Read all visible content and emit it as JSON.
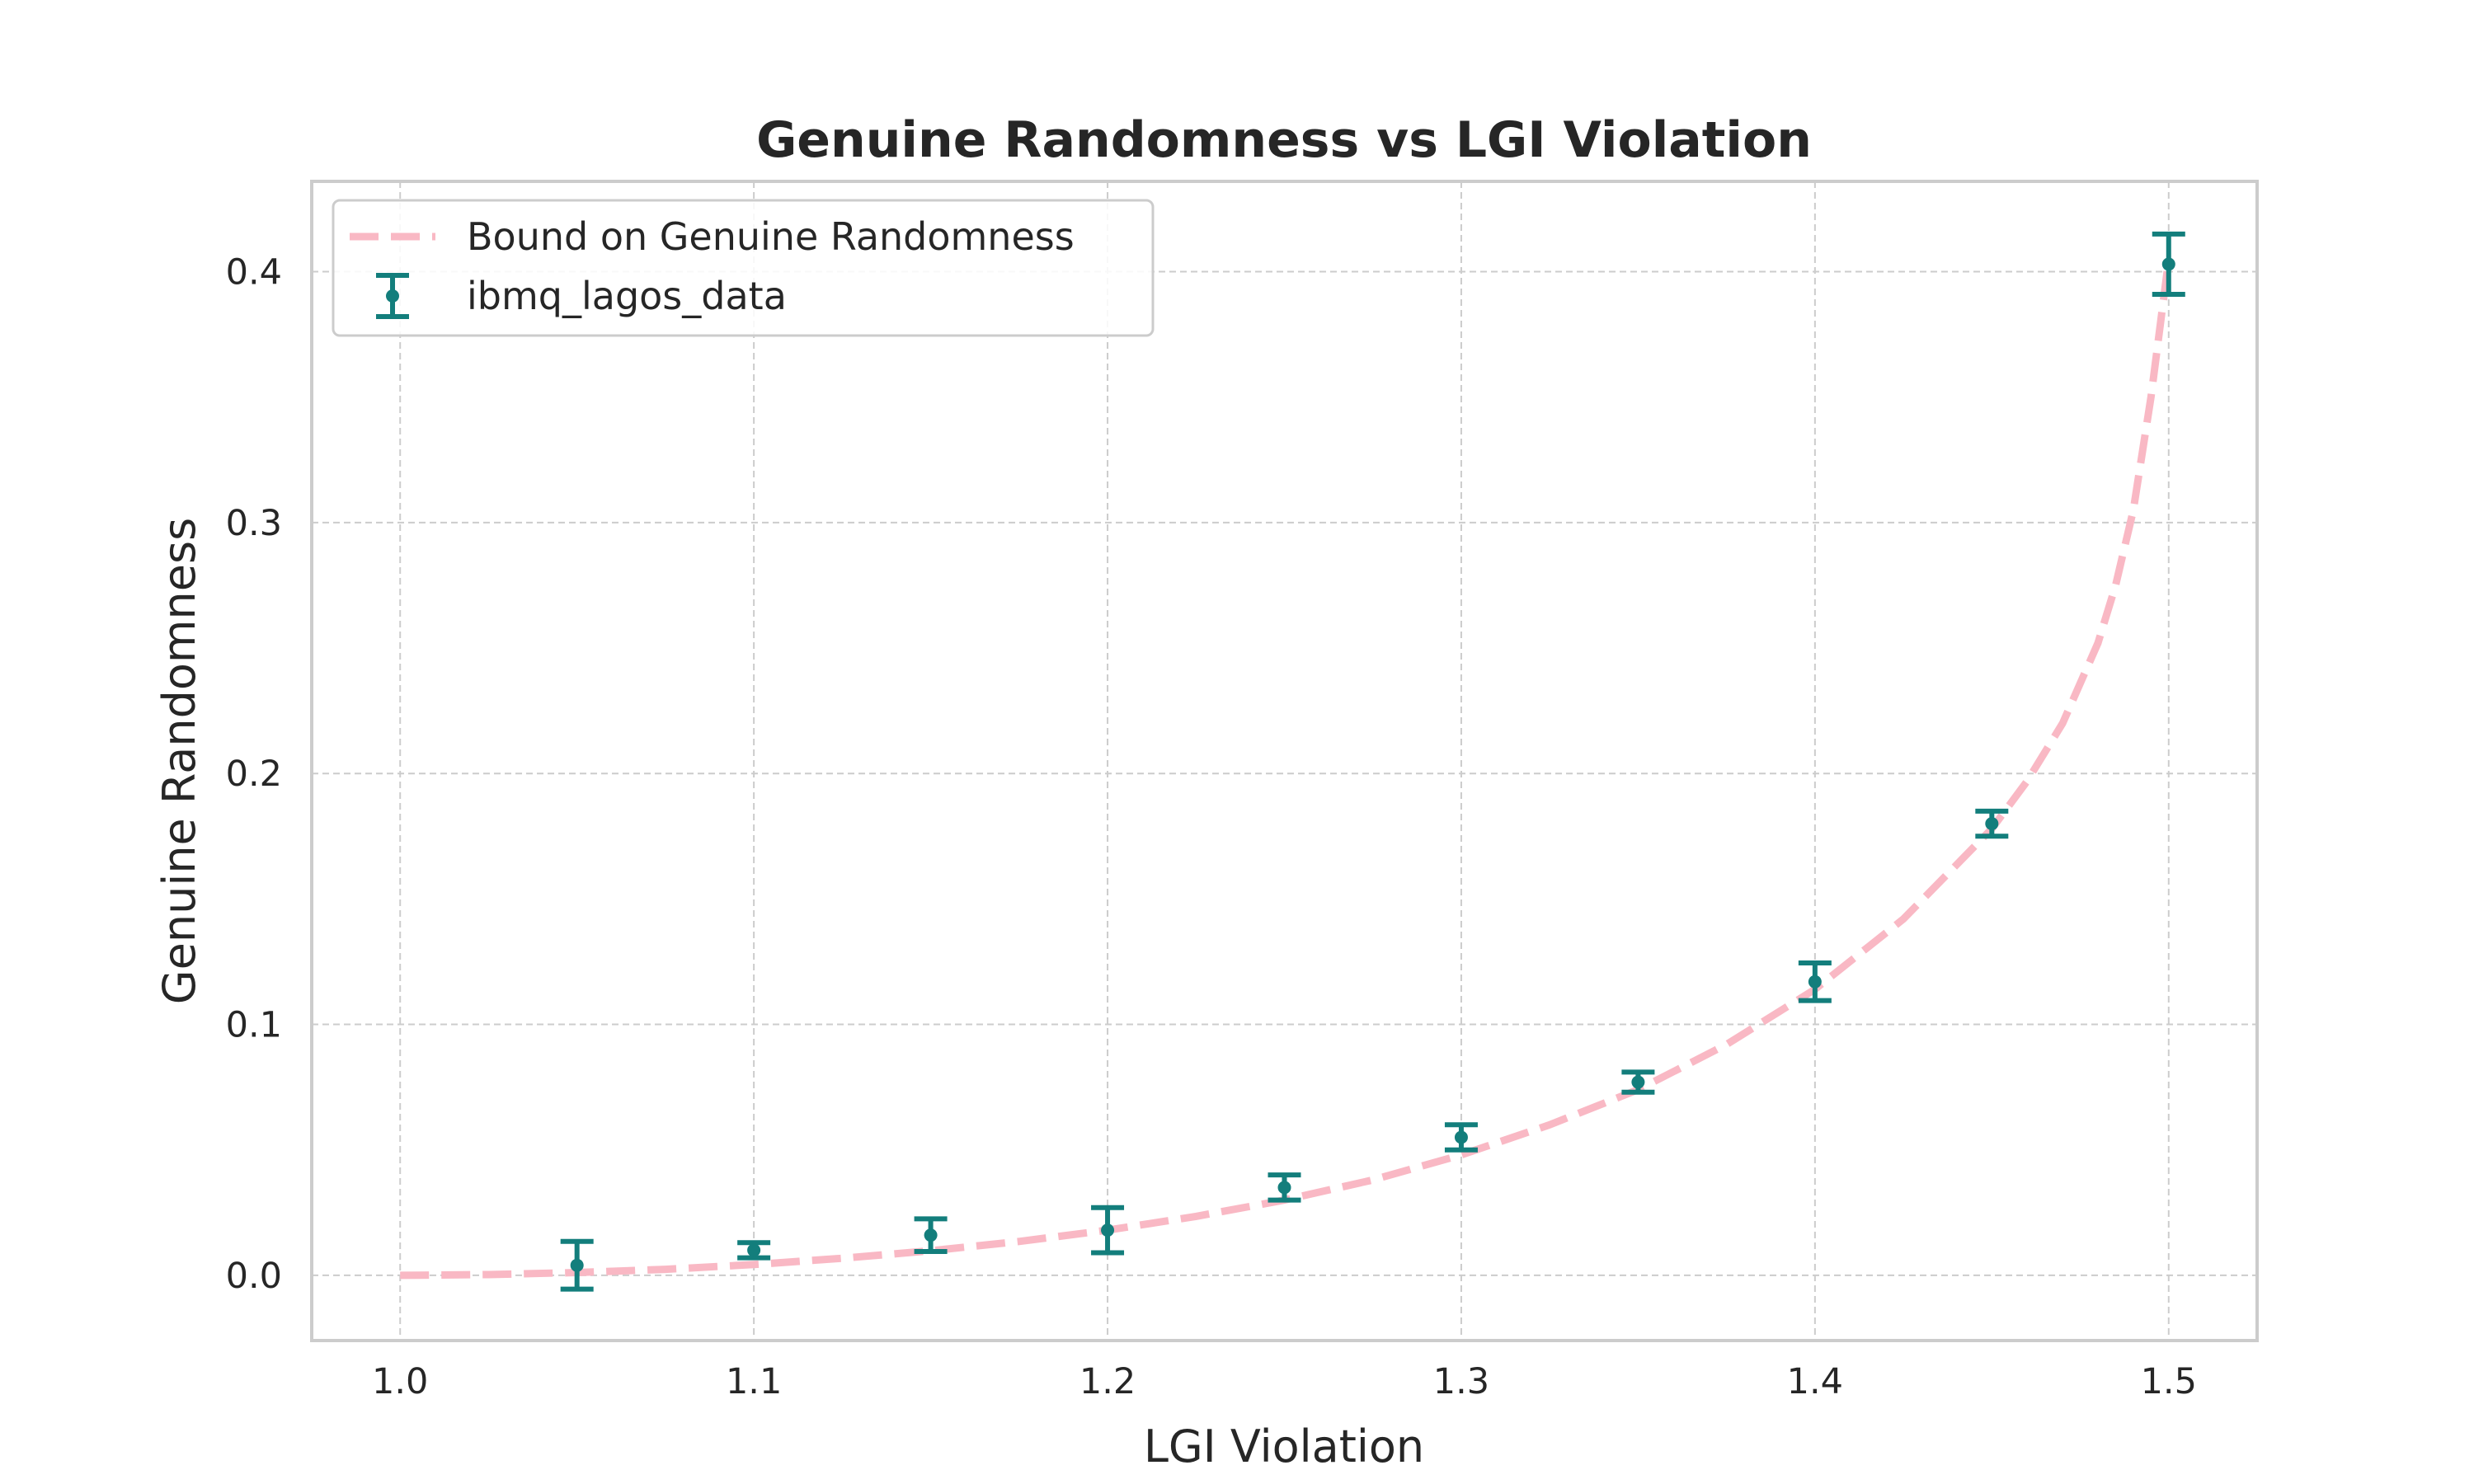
{
  "chart_data": {
    "type": "scatter",
    "title": "Genuine Randomness vs LGI Violation",
    "xlabel": "LGI Violation",
    "ylabel": "Genuine Randomness",
    "xlim": [
      0.975,
      1.525
    ],
    "ylim": [
      -0.026,
      0.436
    ],
    "xticks": [
      1.0,
      1.1,
      1.2,
      1.3,
      1.4,
      1.5
    ],
    "xtick_labels": [
      "1.0",
      "1.1",
      "1.2",
      "1.3",
      "1.4",
      "1.5"
    ],
    "yticks": [
      0.0,
      0.1,
      0.2,
      0.3,
      0.4
    ],
    "ytick_labels": [
      "0.0",
      "0.1",
      "0.2",
      "0.3",
      "0.4"
    ],
    "grid": true,
    "legend_position": "top-left",
    "series": [
      {
        "name": "Bound on Genuine Randomness",
        "kind": "line",
        "style": "dashed",
        "color": "#f9b8c4",
        "x": [
          1.0,
          1.025,
          1.05,
          1.075,
          1.1,
          1.125,
          1.15,
          1.175,
          1.2,
          1.225,
          1.25,
          1.275,
          1.3,
          1.325,
          1.35,
          1.375,
          1.4,
          1.425,
          1.45,
          1.46,
          1.47,
          1.48,
          1.485,
          1.49,
          1.495,
          1.5
        ],
        "y": [
          0.0,
          0.0003,
          0.0011,
          0.0024,
          0.0043,
          0.0068,
          0.0098,
          0.0135,
          0.018,
          0.0235,
          0.03,
          0.038,
          0.048,
          0.06,
          0.074,
          0.092,
          0.114,
          0.142,
          0.178,
          0.197,
          0.22,
          0.252,
          0.275,
          0.305,
          0.35,
          0.405
        ]
      },
      {
        "name": "ibmq_lagos_data",
        "kind": "errorbar",
        "color": "#137e7c",
        "x": [
          1.05,
          1.1,
          1.15,
          1.2,
          1.25,
          1.3,
          1.35,
          1.4,
          1.45,
          1.5
        ],
        "y": [
          0.004,
          0.01,
          0.016,
          0.018,
          0.035,
          0.055,
          0.077,
          0.117,
          0.18,
          0.403
        ],
        "yerr": [
          0.0095,
          0.003,
          0.0065,
          0.009,
          0.005,
          0.005,
          0.004,
          0.0075,
          0.005,
          0.012
        ]
      }
    ]
  }
}
